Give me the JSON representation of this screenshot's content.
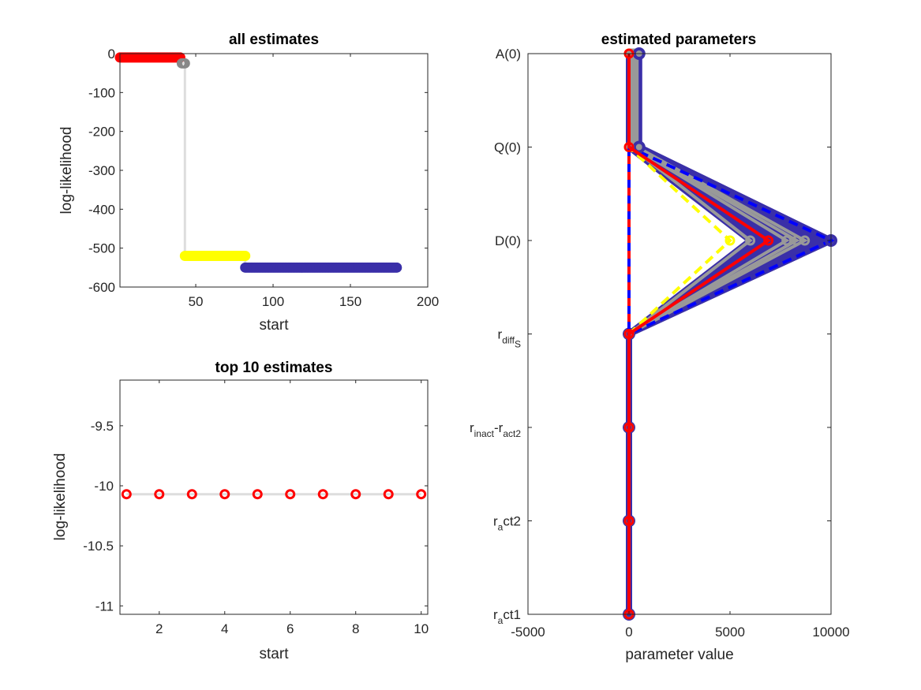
{
  "chart_data": [
    {
      "type": "scatter",
      "title": "all estimates",
      "xlabel": "start",
      "ylabel": "log-likelihood",
      "xlim": [
        1,
        200
      ],
      "ylim": [
        -600,
        0
      ],
      "xticks": [
        50,
        100,
        150,
        200
      ],
      "yticks": [
        0,
        -100,
        -200,
        -300,
        -400,
        -500,
        -600
      ],
      "series": [
        {
          "color": "#ff0000",
          "x_range": [
            1,
            40
          ],
          "y": -10
        },
        {
          "color": "#888888",
          "x_range": [
            41,
            43
          ],
          "y": -25
        },
        {
          "color": "#ffff00",
          "x_range": [
            43,
            82
          ],
          "y": -520
        },
        {
          "color": "#3a2fa8",
          "x_range": [
            82,
            180
          ],
          "y": -550
        }
      ],
      "connector_color": "#dddddd"
    },
    {
      "type": "scatter",
      "title": "top 10 estimates",
      "xlabel": "start",
      "ylabel": "log-likelihood",
      "xlim": [
        0.8,
        10.2
      ],
      "ylim": [
        -11.07,
        -9.12
      ],
      "xticks": [
        2,
        4,
        6,
        8,
        10
      ],
      "yticks": [
        -9.5,
        -10,
        -10.5,
        -11
      ],
      "marker_color": "#ff0000",
      "x": [
        1,
        2,
        3,
        4,
        5,
        6,
        7,
        8,
        9,
        10
      ],
      "y": [
        -10.07,
        -10.07,
        -10.07,
        -10.07,
        -10.07,
        -10.07,
        -10.07,
        -10.07,
        -10.07,
        -10.07
      ]
    },
    {
      "type": "line",
      "title": "estimated parameters",
      "xlabel": "parameter value",
      "xlim": [
        -5000,
        10000
      ],
      "xticks": [
        -5000,
        0,
        5000,
        10000
      ],
      "parameters": [
        {
          "base": "A(0)"
        },
        {
          "base": "Q(0)"
        },
        {
          "base": "D(0)"
        },
        {
          "base": "r",
          "sub": "diff",
          "subsub": "S"
        },
        {
          "base": "r",
          "sub": "inact",
          "mid": "-r",
          "sub2": "act2"
        },
        {
          "base": "r",
          "sub": "a",
          "tail": "ct2"
        },
        {
          "base": "r",
          "sub": "a",
          "tail": "ct1"
        }
      ],
      "blue_band": {
        "color": "#3a2fa8",
        "left": [
          0,
          0,
          6000,
          0,
          0,
          0,
          0
        ],
        "right": [
          500,
          500,
          10000,
          0,
          0,
          0,
          0
        ]
      },
      "gray_lines": [
        {
          "values": [
            400,
            400,
            8700,
            0,
            0,
            0,
            0
          ]
        },
        {
          "values": [
            300,
            300,
            8300,
            0,
            0,
            0,
            0
          ]
        },
        {
          "values": [
            200,
            200,
            7800,
            0,
            0,
            0,
            0
          ]
        },
        {
          "values": [
            100,
            100,
            6000,
            0,
            0,
            0,
            0
          ]
        }
      ],
      "gray_color": "#999999",
      "yellow_dashed": {
        "color": "#ffff00",
        "values": [
          0,
          0,
          5000,
          0,
          0,
          0,
          0
        ]
      },
      "blue_dashed": {
        "color": "#0000ff",
        "values": [
          0,
          0,
          10000,
          0,
          0,
          0,
          0
        ]
      },
      "red_line": {
        "color": "#ff0000",
        "values": [
          0,
          0,
          6900,
          0,
          0,
          0,
          0
        ]
      }
    }
  ]
}
